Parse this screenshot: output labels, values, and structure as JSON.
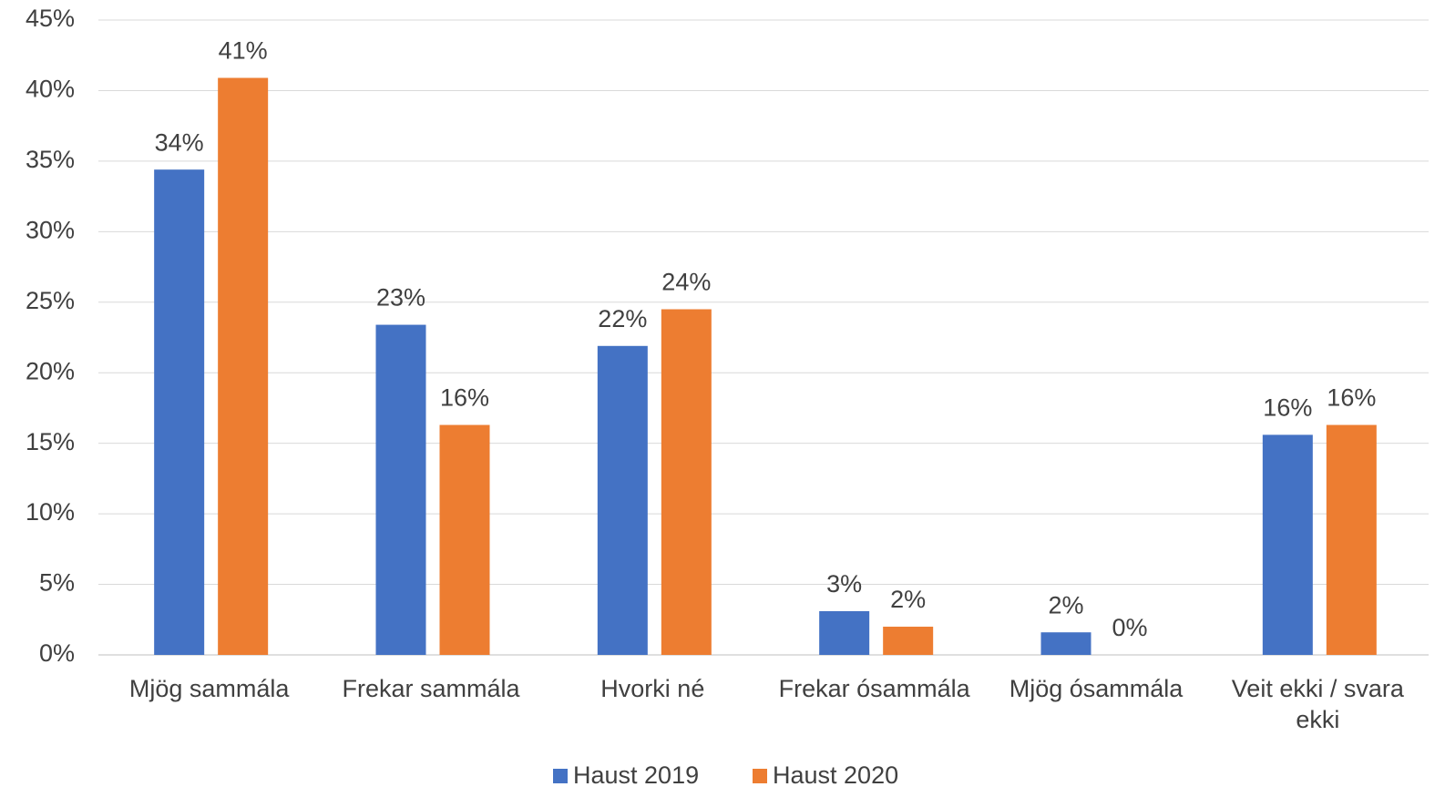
{
  "chart_data": {
    "type": "bar",
    "categories": [
      "Mjög sammála",
      "Frekar sammála",
      "Hvorki né",
      "Frekar ósammála",
      "Mjög ósammála",
      "Veit ekki / svara ekki"
    ],
    "series": [
      {
        "name": "Haust 2019",
        "color": "#4472c4",
        "values": [
          34.4,
          23.4,
          21.9,
          3.1,
          1.6,
          15.6
        ],
        "value_labels": [
          "34%",
          "23%",
          "22%",
          "3%",
          "2%",
          "16%"
        ]
      },
      {
        "name": "Haust 2020",
        "color": "#ed7d31",
        "values": [
          40.9,
          16.3,
          24.5,
          2.0,
          0,
          16.3
        ],
        "value_labels": [
          "41%",
          "16%",
          "24%",
          "2%",
          "0%",
          "16%"
        ]
      }
    ],
    "ylim": [
      0,
      45
    ],
    "yticks": [
      {
        "value": 0,
        "label": "0%"
      },
      {
        "value": 5,
        "label": "5%"
      },
      {
        "value": 10,
        "label": "10%"
      },
      {
        "value": 15,
        "label": "15%"
      },
      {
        "value": 20,
        "label": "20%"
      },
      {
        "value": 25,
        "label": "25%"
      },
      {
        "value": 30,
        "label": "30%"
      },
      {
        "value": 35,
        "label": "35%"
      },
      {
        "value": 40,
        "label": "40%"
      },
      {
        "value": 45,
        "label": "45%"
      }
    ],
    "grid": true,
    "legend": "bottom"
  }
}
